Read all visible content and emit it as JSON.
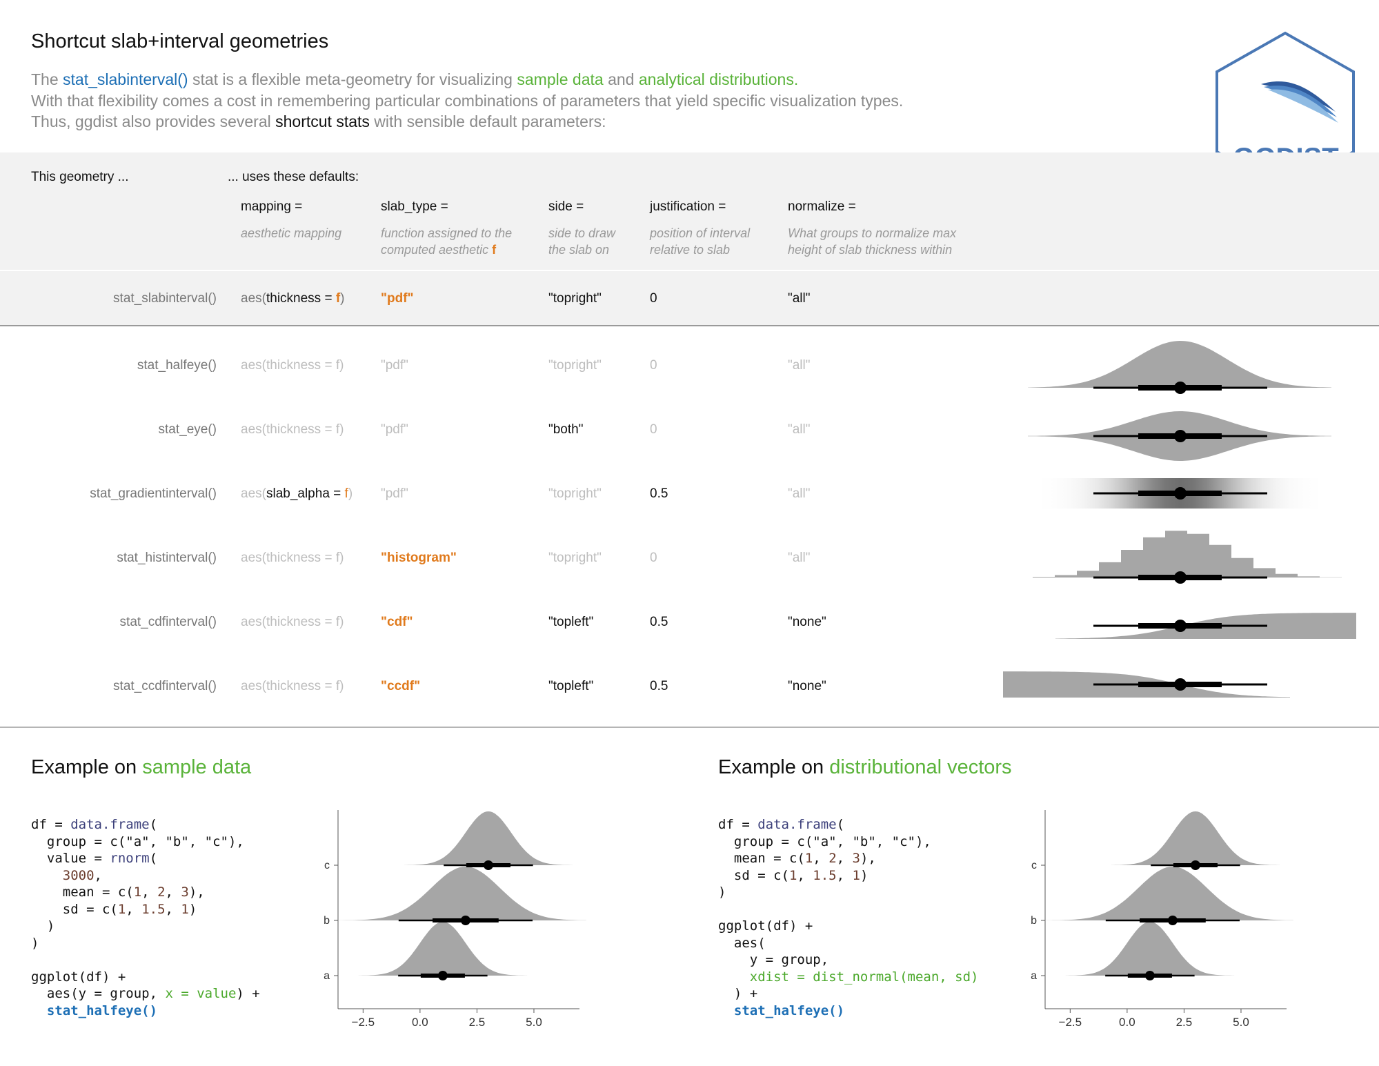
{
  "title": "Shortcut slab+interval geometries",
  "intro": {
    "line1_a": "The ",
    "line1_fn": "stat_slabinterval()",
    "line1_b": " stat is a flexible meta-geometry for visualizing ",
    "line1_sample": "sample data",
    "line1_and": " and ",
    "line1_analytic": "analytical distributions.",
    "line2": "With that flexibility comes a cost in remembering particular combinations of parameters that yield specific visualization types.",
    "line3_a": "Thus, ggdist also provides several ",
    "line3_b": "shortcut stats",
    "line3_c": " with sensible default parameters:"
  },
  "logo": {
    "text": "GGDIST",
    "color": "#4a78b5"
  },
  "header": {
    "geometry": "This geometry ...",
    "defaults": "... uses these defaults:",
    "columns": [
      {
        "name": "mapping =",
        "desc1": "aesthetic mapping",
        "desc2": ""
      },
      {
        "name": "slab_type =",
        "desc1": "function assigned to the",
        "desc2": "computed aesthetic",
        "desc2_f": "f"
      },
      {
        "name": "side =",
        "desc1": "side to draw",
        "desc2": "the slab on"
      },
      {
        "name": "justification =",
        "desc1": "position of interval",
        "desc2": "relative to slab"
      },
      {
        "name": "normalize =",
        "desc1": "What groups to normalize max",
        "desc2": "height of slab thickness within"
      }
    ]
  },
  "base_row": {
    "name": "stat_slabinterval()",
    "aes": "aes(",
    "aes_param": "thickness = ",
    "aes_f": "f",
    "aes_close": ")",
    "slab_type": "\"pdf\"",
    "side": "\"topright\"",
    "justification": "0",
    "normalize": "\"all\""
  },
  "rows": [
    {
      "name": "stat_halfeye()",
      "aes_a": "aes(",
      "aes_param": "thickness = f",
      "aes_close": ")",
      "slab_type": "\"pdf\"",
      "side": "\"topright\"",
      "justification": "0",
      "normalize": "\"all\"",
      "hl": {
        "aes": false,
        "slab": false,
        "side": false,
        "just": false,
        "norm": false
      }
    },
    {
      "name": "stat_eye()",
      "aes_a": "aes(",
      "aes_param": "thickness = f",
      "aes_close": ")",
      "slab_type": "\"pdf\"",
      "side": "\"both\"",
      "justification": "0",
      "normalize": "\"all\"",
      "hl": {
        "aes": false,
        "slab": false,
        "side": true,
        "just": false,
        "norm": false
      }
    },
    {
      "name": "stat_gradientinterval()",
      "aes_a": "aes(",
      "aes_param": "slab_alpha = ",
      "aes_f": "f",
      "aes_close": ")",
      "slab_type": "\"pdf\"",
      "side": "\"topright\"",
      "justification": "0.5",
      "normalize": "\"all\"",
      "hl": {
        "aes": true,
        "slab": false,
        "side": false,
        "just": true,
        "norm": false
      }
    },
    {
      "name": "stat_histinterval()",
      "aes_a": "aes(",
      "aes_param": "thickness = f",
      "aes_close": ")",
      "slab_type": "\"histogram\"",
      "side": "\"topright\"",
      "justification": "0",
      "normalize": "\"all\"",
      "hl": {
        "aes": false,
        "slab": true,
        "side": false,
        "just": false,
        "norm": false
      }
    },
    {
      "name": "stat_cdfinterval()",
      "aes_a": "aes(",
      "aes_param": "thickness = f",
      "aes_close": ")",
      "slab_type": "\"cdf\"",
      "side": "\"topleft\"",
      "justification": "0.5",
      "normalize": "\"none\"",
      "hl": {
        "aes": false,
        "slab": true,
        "side": true,
        "just": true,
        "norm": true
      }
    },
    {
      "name": "stat_ccdfinterval()",
      "aes_a": "aes(",
      "aes_param": "thickness = f",
      "aes_close": ")",
      "slab_type": "\"ccdf\"",
      "side": "\"topleft\"",
      "justification": "0.5",
      "normalize": "\"none\"",
      "hl": {
        "aes": false,
        "slab": true,
        "side": true,
        "just": true,
        "norm": true
      }
    }
  ],
  "examples": {
    "sample": {
      "heading_a": "Example on ",
      "heading_b": "sample data",
      "code": [
        [
          [
            "t",
            "df = "
          ],
          [
            "fn",
            "data.frame"
          ],
          [
            "t",
            "("
          ]
        ],
        [
          [
            "t",
            "  group = c(\"a\", \"b\", \"c\"),"
          ]
        ],
        [
          [
            "t",
            "  value = "
          ],
          [
            "fn",
            "rnorm"
          ],
          [
            "t",
            "("
          ]
        ],
        [
          [
            "num",
            "    3000"
          ],
          [
            "t",
            ","
          ]
        ],
        [
          [
            "t",
            "    mean = c("
          ],
          [
            "num",
            "1"
          ],
          [
            "t",
            ", "
          ],
          [
            "num",
            "2"
          ],
          [
            "t",
            ", "
          ],
          [
            "num",
            "3"
          ],
          [
            "t",
            "),"
          ]
        ],
        [
          [
            "t",
            "    sd = c("
          ],
          [
            "num",
            "1"
          ],
          [
            "t",
            ", "
          ],
          [
            "num",
            "1.5"
          ],
          [
            "t",
            ", "
          ],
          [
            "num",
            "1"
          ],
          [
            "t",
            ")"
          ]
        ],
        [
          [
            "t",
            "  )"
          ]
        ],
        [
          [
            "t",
            ")"
          ]
        ],
        [
          [
            "t",
            ""
          ]
        ],
        [
          [
            "t",
            "ggplot(df) +"
          ]
        ],
        [
          [
            "t",
            "  aes(y = group, "
          ],
          [
            "gr",
            "x = value"
          ],
          [
            "t",
            ") +"
          ]
        ],
        [
          [
            "kw",
            "  stat_halfeye()"
          ]
        ]
      ]
    },
    "dist": {
      "heading_a": "Example on ",
      "heading_b": "distributional vectors",
      "code": [
        [
          [
            "t",
            "df = "
          ],
          [
            "fn",
            "data.frame"
          ],
          [
            "t",
            "("
          ]
        ],
        [
          [
            "t",
            "  group = c(\"a\", \"b\", \"c\"),"
          ]
        ],
        [
          [
            "t",
            "  mean = c("
          ],
          [
            "num",
            "1"
          ],
          [
            "t",
            ", "
          ],
          [
            "num",
            "2"
          ],
          [
            "t",
            ", "
          ],
          [
            "num",
            "3"
          ],
          [
            "t",
            "),"
          ]
        ],
        [
          [
            "t",
            "  sd = c("
          ],
          [
            "num",
            "1"
          ],
          [
            "t",
            ", "
          ],
          [
            "num",
            "1.5"
          ],
          [
            "t",
            ", "
          ],
          [
            "num",
            "1"
          ],
          [
            "t",
            ")"
          ]
        ],
        [
          [
            "t",
            ")"
          ]
        ],
        [
          [
            "t",
            ""
          ]
        ],
        [
          [
            "t",
            "ggplot(df) +"
          ]
        ],
        [
          [
            "t",
            "  aes("
          ]
        ],
        [
          [
            "t",
            "    y = group,"
          ]
        ],
        [
          [
            "gr",
            "    xdist = dist_normal(mean, sd)"
          ]
        ],
        [
          [
            "t",
            "  ) +"
          ]
        ],
        [
          [
            "kw",
            "  stat_halfeye()"
          ]
        ]
      ]
    }
  },
  "chart_data": [
    {
      "type": "halfeye",
      "categories": [
        "a",
        "b",
        "c"
      ],
      "groups": [
        {
          "name": "a",
          "mean": 1,
          "sd": 1,
          "q66": [
            0.03,
            1.97
          ],
          "q95": [
            -0.96,
            2.96
          ]
        },
        {
          "name": "b",
          "mean": 2,
          "sd": 1.5,
          "q66": [
            0.55,
            3.45
          ],
          "q95": [
            -0.94,
            4.94
          ]
        },
        {
          "name": "c",
          "mean": 3,
          "sd": 1,
          "q66": [
            2.03,
            3.97
          ],
          "q95": [
            1.04,
            4.96
          ]
        }
      ],
      "x_ticks": [
        "−2.5",
        "0.0",
        "2.5",
        "5.0"
      ],
      "x_tick_values": [
        -2.5,
        0,
        2.5,
        5
      ],
      "xlim": [
        -3.6,
        7
      ],
      "color": "#a6a6a6"
    },
    {
      "type": "halfeye",
      "categories": [
        "a",
        "b",
        "c"
      ],
      "groups": [
        {
          "name": "a",
          "mean": 1,
          "sd": 1,
          "q66": [
            0.03,
            1.97
          ],
          "q95": [
            -0.96,
            2.96
          ]
        },
        {
          "name": "b",
          "mean": 2,
          "sd": 1.5,
          "q66": [
            0.55,
            3.45
          ],
          "q95": [
            -0.94,
            4.94
          ]
        },
        {
          "name": "c",
          "mean": 3,
          "sd": 1,
          "q66": [
            2.03,
            3.97
          ],
          "q95": [
            1.04,
            4.96
          ]
        }
      ],
      "x_ticks": [
        "−2.5",
        "0.0",
        "2.5",
        "5.0"
      ],
      "x_tick_values": [
        -2.5,
        0,
        2.5,
        5
      ],
      "xlim": [
        -3.6,
        7
      ],
      "color": "#a6a6a6"
    }
  ]
}
